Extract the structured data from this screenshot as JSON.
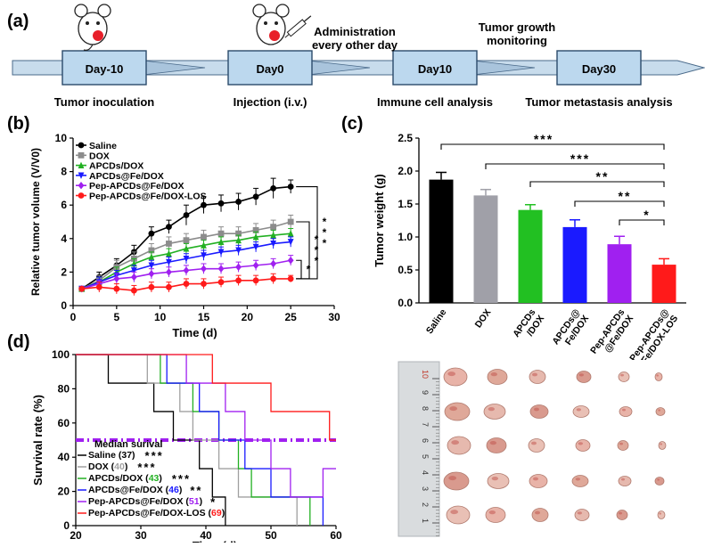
{
  "panel_a": {
    "letter": "(a)",
    "steps": [
      {
        "box": "Day-10",
        "below": "Tumor inoculation",
        "above": ""
      },
      {
        "box": "Day0",
        "below": "Injection (i.v.)",
        "above": ""
      },
      {
        "box": "Day10",
        "below": "Immune cell analysis",
        "above": "Administration\nevery other day"
      },
      {
        "box": "Day30",
        "below": "Tumor  metastasis analysis",
        "above": "Tumor growth\nmonitoring"
      }
    ],
    "icons": [
      "mouse-icon",
      "mouse-with-syringe-icon"
    ]
  },
  "chart_data": [
    {
      "panel": "(b)",
      "type": "line",
      "xlabel": "Time (d)",
      "ylabel": "Relative tumor volume (V/V0)",
      "xlim": [
        0,
        30
      ],
      "ylim": [
        0,
        10
      ],
      "xticks": [
        0,
        5,
        10,
        15,
        20,
        25,
        30
      ],
      "yticks": [
        0,
        2,
        4,
        6,
        8,
        10
      ],
      "x": [
        1,
        3,
        5,
        7,
        9,
        11,
        13,
        15,
        17,
        19,
        21,
        23,
        25
      ],
      "series": [
        {
          "name": "Saline",
          "color": "#000000",
          "marker": "circle",
          "values": [
            1.0,
            1.7,
            2.4,
            3.2,
            4.3,
            4.7,
            5.4,
            6.0,
            6.1,
            6.2,
            6.5,
            7.0,
            7.1
          ],
          "err": [
            0.1,
            0.3,
            0.4,
            0.4,
            0.4,
            0.4,
            0.6,
            0.5,
            0.5,
            0.5,
            0.5,
            0.6,
            0.4
          ]
        },
        {
          "name": "DOX",
          "color": "#8c8c8c",
          "marker": "square",
          "values": [
            1.0,
            1.5,
            2.3,
            2.8,
            3.3,
            3.7,
            3.9,
            4.1,
            4.3,
            4.3,
            4.5,
            4.7,
            5.0
          ],
          "err": [
            0.1,
            0.3,
            0.4,
            0.4,
            0.4,
            0.4,
            0.4,
            0.4,
            0.4,
            0.4,
            0.4,
            0.4,
            0.4
          ]
        },
        {
          "name": "APCDs/DOX",
          "color": "#22b022",
          "marker": "triangle",
          "values": [
            1.0,
            1.4,
            2.0,
            2.5,
            2.9,
            3.1,
            3.4,
            3.6,
            3.8,
            3.9,
            4.1,
            4.2,
            4.3
          ],
          "err": [
            0.1,
            0.3,
            0.3,
            0.3,
            0.3,
            0.3,
            0.3,
            0.3,
            0.3,
            0.3,
            0.3,
            0.3,
            0.3
          ]
        },
        {
          "name": "APCDs@Fe/DOX",
          "color": "#1a1aff",
          "marker": "triangle-down",
          "values": [
            1.0,
            1.4,
            1.8,
            2.1,
            2.4,
            2.6,
            2.8,
            3.0,
            3.2,
            3.3,
            3.5,
            3.7,
            3.8
          ],
          "err": [
            0.1,
            0.3,
            0.3,
            0.3,
            0.3,
            0.3,
            0.3,
            0.3,
            0.3,
            0.3,
            0.3,
            0.3,
            0.3
          ]
        },
        {
          "name": "Pep-APCDs@Fe/DOX",
          "color": "#a020f0",
          "marker": "diamond",
          "values": [
            1.0,
            1.3,
            1.6,
            1.7,
            1.9,
            2.0,
            2.1,
            2.2,
            2.2,
            2.3,
            2.4,
            2.5,
            2.7
          ],
          "err": [
            0.1,
            0.2,
            0.3,
            0.3,
            0.3,
            0.3,
            0.3,
            0.3,
            0.3,
            0.3,
            0.3,
            0.3,
            0.3
          ]
        },
        {
          "name": "Pep-APCDs@Fe/DOX-LOS",
          "color": "#ff1a1a",
          "marker": "circle",
          "values": [
            1.0,
            1.1,
            1.0,
            0.9,
            1.1,
            1.1,
            1.3,
            1.3,
            1.4,
            1.5,
            1.5,
            1.6,
            1.6
          ],
          "err": [
            0.1,
            0.3,
            0.3,
            0.3,
            0.3,
            0.3,
            0.3,
            0.3,
            0.3,
            0.3,
            0.3,
            0.3,
            0.2
          ]
        }
      ],
      "significance": [
        {
          "from": "Pep-APCDs@Fe/DOX-LOS",
          "to": "Saline",
          "label": "***"
        },
        {
          "from": "Pep-APCDs@Fe/DOX-LOS",
          "to": "DOX",
          "label": "***"
        },
        {
          "from": "Pep-APCDs@Fe/DOX-LOS",
          "to": "Pep-APCDs@Fe/DOX",
          "label": "*"
        }
      ]
    },
    {
      "panel": "(c)",
      "type": "bar",
      "ylabel": "Tumor weight (g)",
      "ylim": [
        0,
        2.5
      ],
      "yticks": [
        0.0,
        0.5,
        1.0,
        1.5,
        2.0,
        2.5
      ],
      "categories": [
        "Saline",
        "DOX",
        "APCDs\n/DOX",
        "APCDs@\nFe/DOX",
        "Pep-APCDs\n@Fe/DOX",
        "Pep-APCDs@\nFe/DOX-LOS"
      ],
      "values": [
        1.87,
        1.63,
        1.41,
        1.15,
        0.89,
        0.58
      ],
      "err": [
        0.11,
        0.09,
        0.08,
        0.11,
        0.12,
        0.09
      ],
      "colors": [
        "#000000",
        "#a0a0a8",
        "#22c022",
        "#1a1aff",
        "#a020f0",
        "#ff1a1a"
      ],
      "significance": [
        {
          "a": 0,
          "b": 5,
          "label": "***"
        },
        {
          "a": 1,
          "b": 5,
          "label": "***"
        },
        {
          "a": 2,
          "b": 5,
          "label": "**"
        },
        {
          "a": 3,
          "b": 5,
          "label": "**"
        },
        {
          "a": 4,
          "b": 5,
          "label": "*"
        }
      ]
    },
    {
      "panel": "(d)",
      "type": "line",
      "xlabel": "Time (d)",
      "ylabel": "Survival rate (%)",
      "xlim": [
        20,
        60
      ],
      "ylim": [
        0,
        100
      ],
      "xticks": [
        20,
        30,
        40,
        50,
        60
      ],
      "yticks": [
        0,
        20,
        40,
        60,
        80,
        100
      ],
      "median_line": 50,
      "legend_title": "Median surival",
      "series": [
        {
          "name": "Saline",
          "median": "37",
          "sig": "***",
          "color": "#000000",
          "steps": [
            [
              20,
              100
            ],
            [
              25,
              100
            ],
            [
              25,
              83.3
            ],
            [
              32,
              83.3
            ],
            [
              32,
              66.7
            ],
            [
              35,
              66.7
            ],
            [
              35,
              50
            ],
            [
              39,
              50
            ],
            [
              39,
              33.3
            ],
            [
              41,
              33.3
            ],
            [
              41,
              16.7
            ],
            [
              43,
              16.7
            ],
            [
              43,
              0
            ]
          ]
        },
        {
          "name": "DOX",
          "median": "40",
          "sig": "***",
          "color": "#a0a0a0",
          "steps": [
            [
              20,
              100
            ],
            [
              31,
              100
            ],
            [
              31,
              83.3
            ],
            [
              36,
              83.3
            ],
            [
              36,
              66.7
            ],
            [
              38,
              66.7
            ],
            [
              38,
              50
            ],
            [
              42,
              50
            ],
            [
              42,
              33.3
            ],
            [
              45,
              33.3
            ],
            [
              45,
              16.7
            ],
            [
              54,
              16.7
            ],
            [
              54,
              0
            ]
          ]
        },
        {
          "name": "APCDs/DOX",
          "median": "43",
          "sig": "***",
          "color": "#22b022",
          "steps": [
            [
              20,
              100
            ],
            [
              33,
              100
            ],
            [
              33,
              83.3
            ],
            [
              38,
              83.3
            ],
            [
              38,
              66.7
            ],
            [
              42,
              66.7
            ],
            [
              42,
              50
            ],
            [
              45,
              50
            ],
            [
              45,
              33.3
            ],
            [
              47,
              33.3
            ],
            [
              47,
              16.7
            ],
            [
              56,
              16.7
            ],
            [
              56,
              0
            ]
          ]
        },
        {
          "name": "APCDs@Fe/DOX",
          "median": "46",
          "sig": "**",
          "color": "#1a1aff",
          "steps": [
            [
              20,
              100
            ],
            [
              34,
              100
            ],
            [
              34,
              83.3
            ],
            [
              39,
              83.3
            ],
            [
              39,
              66.7
            ],
            [
              42,
              66.7
            ],
            [
              42,
              50
            ],
            [
              46,
              50
            ],
            [
              46,
              33.3
            ],
            [
              50,
              33.3
            ],
            [
              50,
              16.7
            ],
            [
              58,
              16.7
            ],
            [
              58,
              0
            ]
          ]
        },
        {
          "name": "Pep-APCDs@Fe/DOX",
          "median": "51",
          "sig": "*",
          "color": "#a020f0",
          "steps": [
            [
              20,
              100
            ],
            [
              37,
              100
            ],
            [
              37,
              83.3
            ],
            [
              43,
              83.3
            ],
            [
              43,
              66.7
            ],
            [
              46,
              66.7
            ],
            [
              46,
              50
            ],
            [
              50,
              50
            ],
            [
              50,
              33.3
            ],
            [
              53,
              33.3
            ],
            [
              53,
              16.7
            ],
            [
              58,
              16.7
            ],
            [
              58,
              33.3
            ],
            [
              60,
              33.3
            ]
          ]
        },
        {
          "name": "Pep-APCDs@Fe/DOX-LOS",
          "median": "69",
          "sig": "",
          "color": "#ff1a1a",
          "steps": [
            [
              20,
              100
            ],
            [
              41,
              100
            ],
            [
              41,
              83.3
            ],
            [
              50,
              83.3
            ],
            [
              50,
              66.7
            ],
            [
              59,
              66.7
            ],
            [
              59,
              50
            ],
            [
              60,
              50
            ]
          ]
        }
      ]
    }
  ],
  "panel_labels": {
    "b": "(b)",
    "c": "(c)",
    "d": "(d)"
  },
  "photo": {
    "description_icon": "tumor-photo",
    "ruler_marks": [
      "10",
      "9",
      "8",
      "7",
      "6",
      "5",
      "4",
      "3",
      "2",
      "1"
    ],
    "rows": 5,
    "cols": 6
  }
}
